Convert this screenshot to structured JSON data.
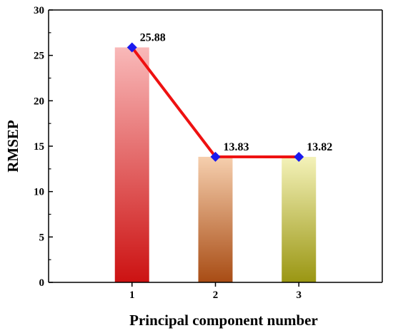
{
  "chart_data": {
    "type": "bar",
    "x": [
      1,
      2,
      3
    ],
    "categories": [
      "1",
      "2",
      "3"
    ],
    "values": [
      25.88,
      13.83,
      13.82
    ],
    "data_labels": [
      "25.88",
      "13.83",
      "13.82"
    ],
    "line_overlay": {
      "values": [
        25.88,
        13.83,
        13.82
      ],
      "line_color": "#ee1111",
      "marker": "diamond",
      "marker_color": "#1a1aee"
    },
    "bar_gradients": [
      {
        "top": "#f9b9b9",
        "bottom": "#cc1212"
      },
      {
        "top": "#f6cfae",
        "bottom": "#a84c14"
      },
      {
        "top": "#f4f2b9",
        "bottom": "#9a9612"
      }
    ],
    "xlabel": "Principal component number",
    "ylabel": "RMSEP",
    "ylim": [
      0,
      30
    ],
    "yticks": [
      0,
      5,
      10,
      15,
      20,
      25,
      30
    ],
    "ytick_labels": [
      "0",
      "5",
      "10",
      "15",
      "20",
      "25",
      "30"
    ],
    "grid": false
  }
}
